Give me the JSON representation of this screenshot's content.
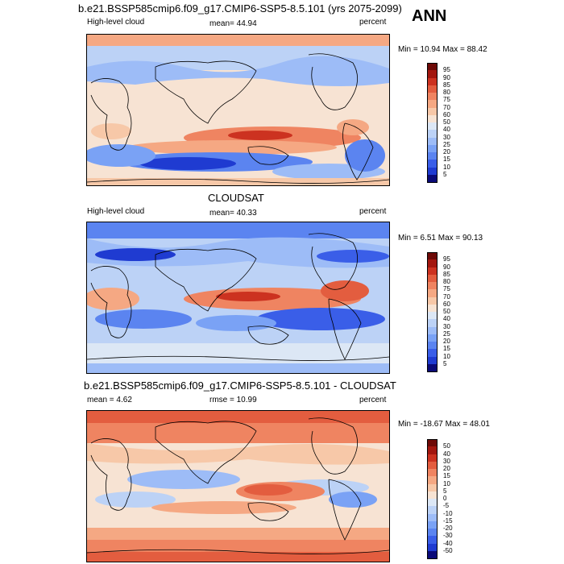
{
  "annotation": "ANN",
  "panels": [
    {
      "title": "b.e21.BSSP585cmip6.f09_g17.CMIP6-SSP5-8.5.101 (yrs 2075-2099)",
      "left_label": "High-level cloud",
      "center_label": "mean=  44.94",
      "right_label": "percent",
      "minmax": "Min =  10.94 Max =  88.42"
    },
    {
      "title": "CLOUDSAT",
      "left_label": "High-level cloud",
      "center_label": "mean=  40.33",
      "right_label": "percent",
      "minmax": "Min =   6.51 Max =  90.13"
    },
    {
      "title": "b.e21.BSSP585cmip6.f09_g17.CMIP6-SSP5-8.5.101 - CLOUDSAT",
      "left_label": "mean =   4.62",
      "center_label": "rmse =   10.99",
      "right_label": "percent",
      "minmax": "Min = -18.67 Max =  48.01"
    }
  ],
  "chart_data": [
    {
      "type": "heatmap",
      "title": "b.e21.BSSP585cmip6.f09_g17.CMIP6-SSP5-8.5.101 (yrs 2075-2099)",
      "variable": "High-level cloud",
      "units": "percent",
      "mean": 44.94,
      "min": 10.94,
      "max": 88.42,
      "colorbar_levels": [
        5,
        10,
        15,
        20,
        25,
        30,
        40,
        50,
        60,
        70,
        75,
        80,
        85,
        90,
        95
      ],
      "colorbar_colors": [
        "#0a0a78",
        "#1f3bd1",
        "#3a5ee8",
        "#5b84f0",
        "#7aa2f5",
        "#9dbcf7",
        "#bcd2f6",
        "#dce7f5",
        "#f7e3d3",
        "#f7c8a8",
        "#f5a883",
        "#ef8461",
        "#e35d3f",
        "#cc3220",
        "#a3170f",
        "#6e0a07"
      ]
    },
    {
      "type": "heatmap",
      "title": "CLOUDSAT",
      "variable": "High-level cloud",
      "units": "percent",
      "mean": 40.33,
      "min": 6.51,
      "max": 90.13,
      "colorbar_levels": [
        5,
        10,
        15,
        20,
        25,
        30,
        40,
        50,
        60,
        70,
        75,
        80,
        85,
        90,
        95
      ],
      "colorbar_colors": [
        "#0a0a78",
        "#1f3bd1",
        "#3a5ee8",
        "#5b84f0",
        "#7aa2f5",
        "#9dbcf7",
        "#bcd2f6",
        "#dce7f5",
        "#f7e3d3",
        "#f7c8a8",
        "#f5a883",
        "#ef8461",
        "#e35d3f",
        "#cc3220",
        "#a3170f",
        "#6e0a07"
      ]
    },
    {
      "type": "heatmap",
      "title": "b.e21.BSSP585cmip6.f09_g17.CMIP6-SSP5-8.5.101 - CLOUDSAT",
      "units": "percent",
      "mean": 4.62,
      "rmse": 10.99,
      "min": -18.67,
      "max": 48.01,
      "colorbar_levels": [
        -50,
        -40,
        -30,
        -20,
        -15,
        -10,
        -5,
        0,
        5,
        10,
        15,
        20,
        30,
        40,
        50
      ],
      "colorbar_colors": [
        "#0a0a78",
        "#1f3bd1",
        "#3a5ee8",
        "#5b84f0",
        "#7aa2f5",
        "#9dbcf7",
        "#bcd2f6",
        "#dce7f5",
        "#f7e3d3",
        "#f7c8a8",
        "#f5a883",
        "#ef8461",
        "#e35d3f",
        "#cc3220",
        "#a3170f",
        "#6e0a07"
      ]
    }
  ]
}
